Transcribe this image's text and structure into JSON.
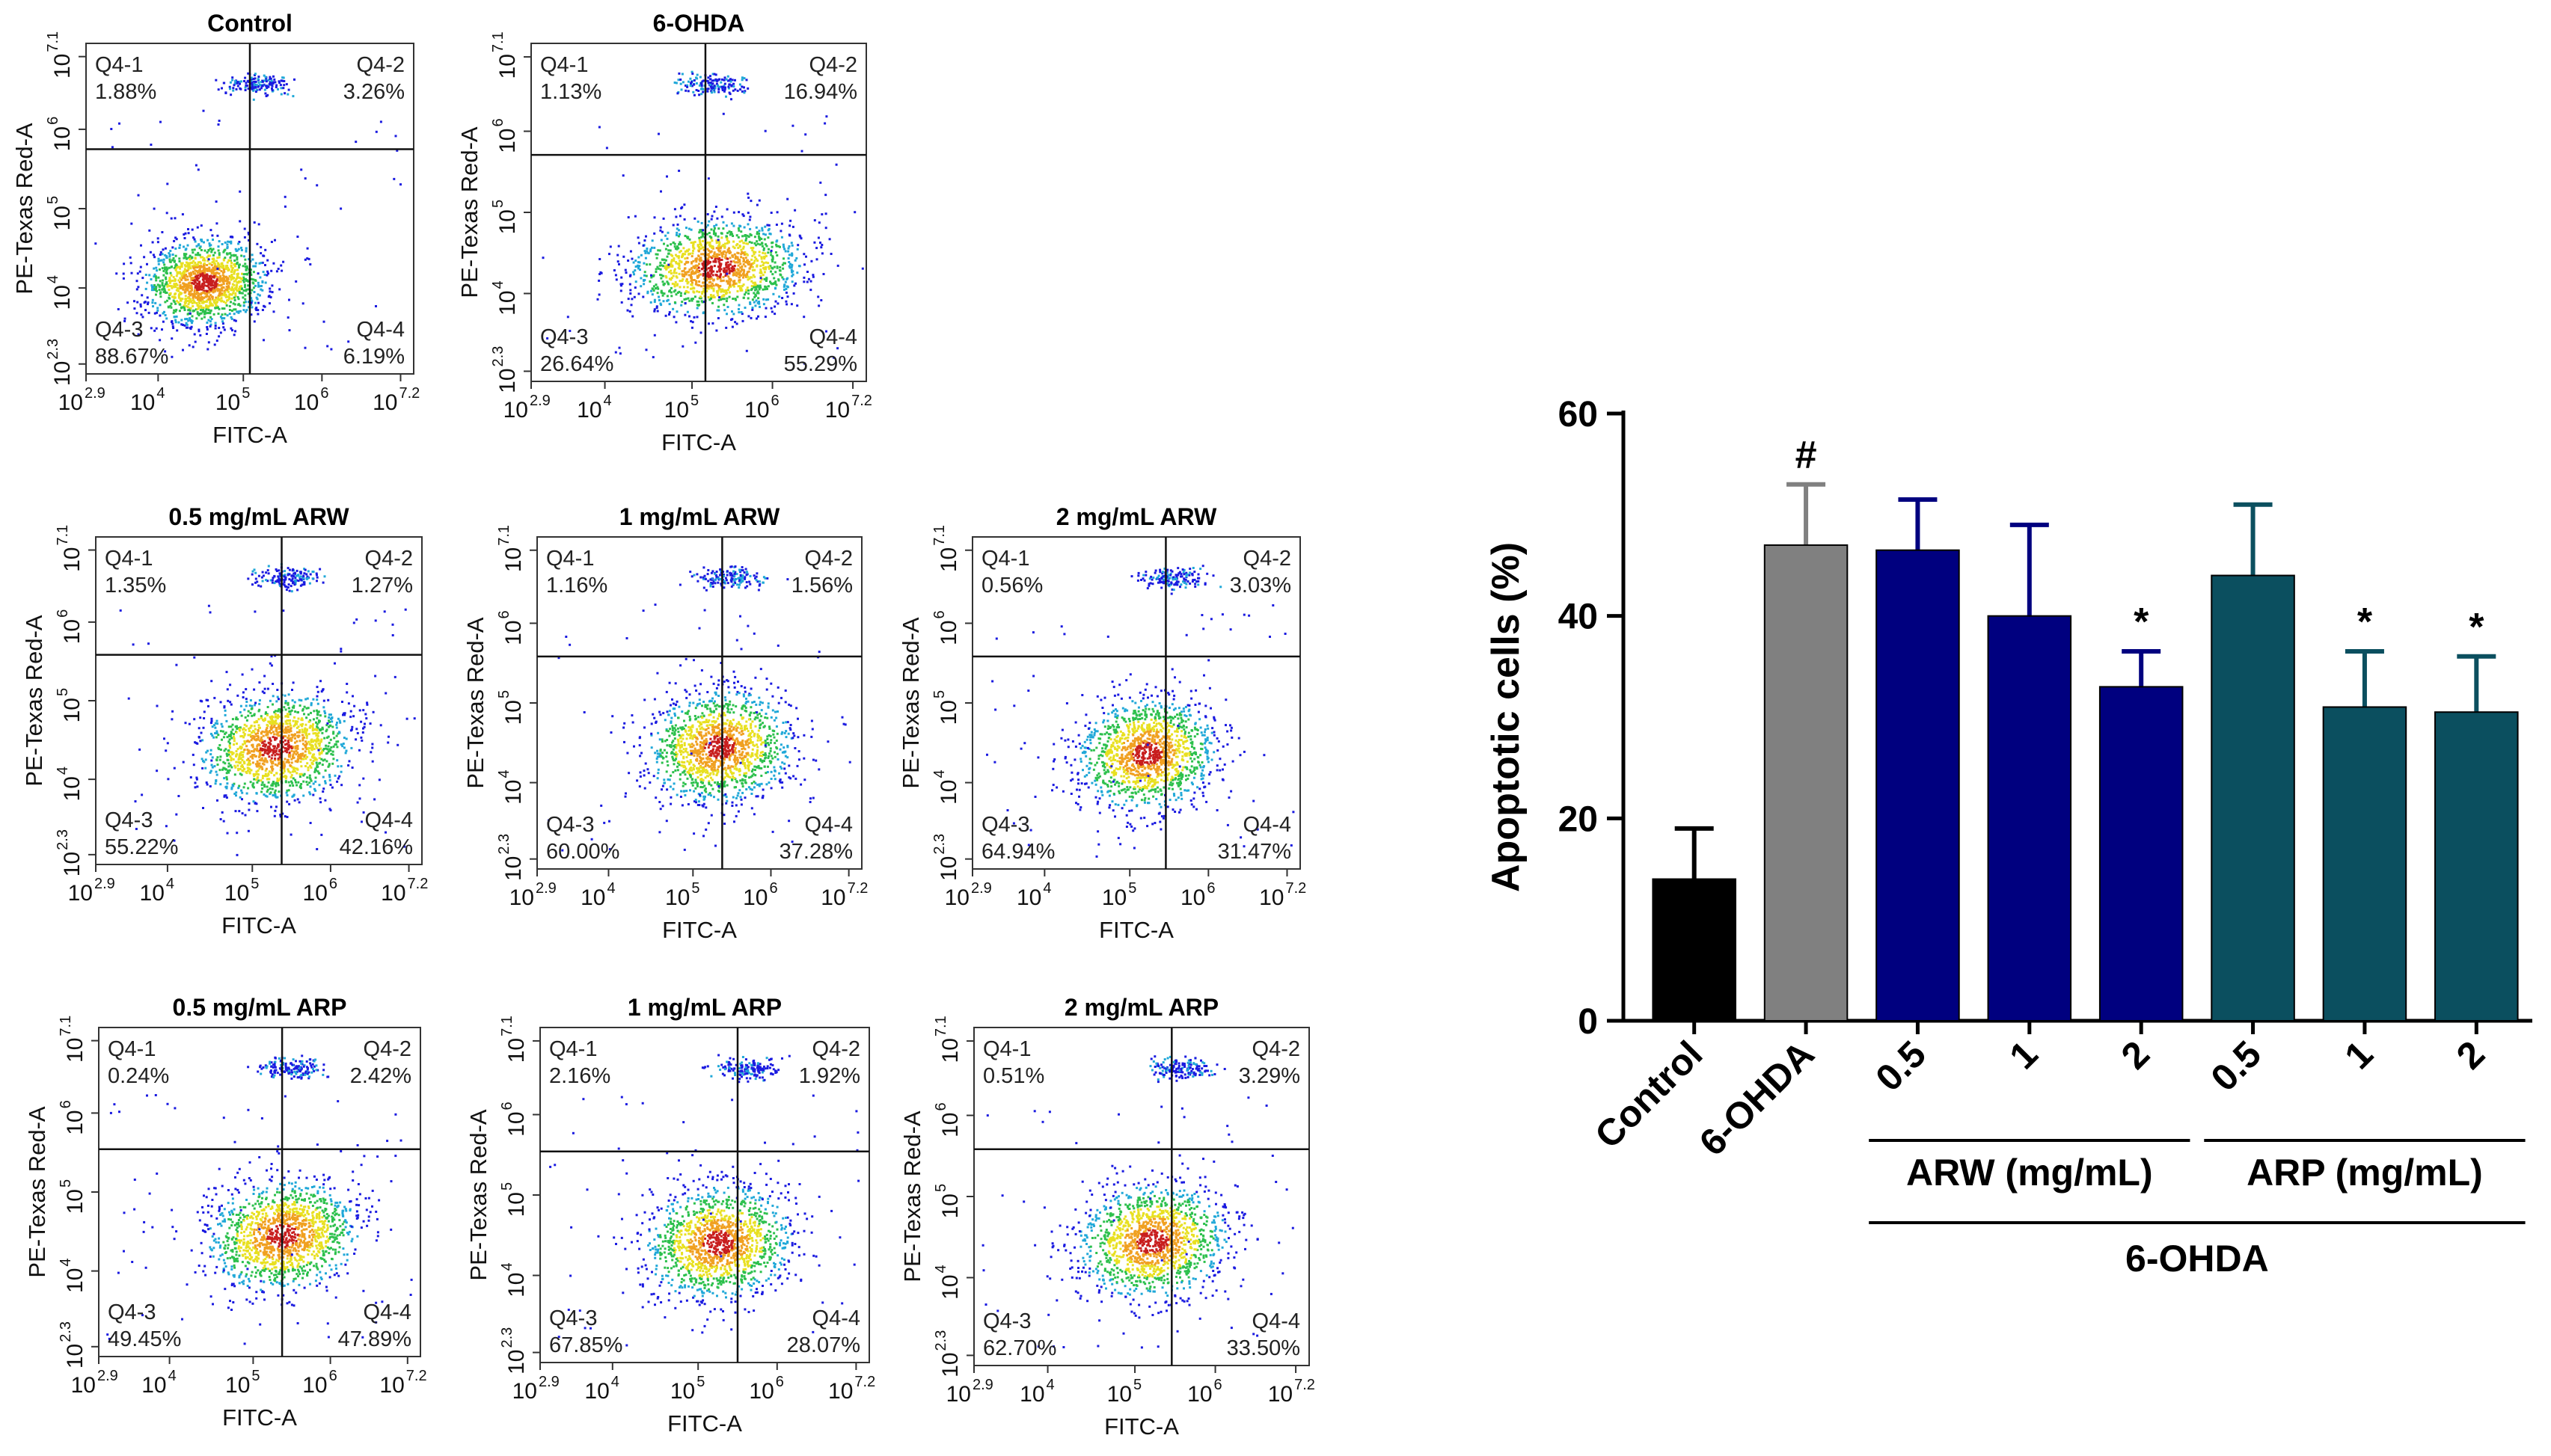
{
  "chart_data": [
    {
      "type": "scatter",
      "subtype": "flow-cytometry-dot-plot",
      "title": "Control",
      "xlabel": "FITC-A",
      "ylabel": "PE-Texas Red-A",
      "x_ticks": [
        "2.9",
        "4",
        "5",
        "6",
        "7.2"
      ],
      "y_ticks": [
        "2.3",
        "4",
        "5",
        "6",
        "7.1"
      ],
      "quadrants": [
        {
          "name": "Q4-1",
          "value": "1.88%"
        },
        {
          "name": "Q4-2",
          "value": "3.26%"
        },
        {
          "name": "Q4-3",
          "value": "88.67%"
        },
        {
          "name": "Q4-4",
          "value": "6.19%"
        }
      ],
      "cluster": {
        "cx": 0.36,
        "cy": 0.72,
        "rx": 0.16,
        "ry": 0.11
      },
      "gate": {
        "x": 0.5,
        "y": 0.32
      }
    },
    {
      "type": "scatter",
      "subtype": "flow-cytometry-dot-plot",
      "title": "6-OHDA",
      "xlabel": "FITC-A",
      "ylabel": "PE-Texas Red-A",
      "x_ticks": [
        "2.9",
        "4",
        "5",
        "6",
        "7.2"
      ],
      "y_ticks": [
        "2.3",
        "4",
        "5",
        "6",
        "7.1"
      ],
      "quadrants": [
        {
          "name": "Q4-1",
          "value": "1.13%"
        },
        {
          "name": "Q4-2",
          "value": "16.94%"
        },
        {
          "name": "Q4-3",
          "value": "26.64%"
        },
        {
          "name": "Q4-4",
          "value": "55.29%"
        }
      ],
      "cluster": {
        "cx": 0.55,
        "cy": 0.66,
        "rx": 0.22,
        "ry": 0.12
      },
      "gate": {
        "x": 0.52,
        "y": 0.33
      }
    },
    {
      "type": "scatter",
      "subtype": "flow-cytometry-dot-plot",
      "title": "0.5 mg/mL ARW",
      "xlabel": "FITC-A",
      "ylabel": "PE-Texas Red-A",
      "x_ticks": [
        "2.9",
        "4",
        "5",
        "6",
        "7.2"
      ],
      "y_ticks": [
        "2.3",
        "4",
        "5",
        "6",
        "7.1"
      ],
      "quadrants": [
        {
          "name": "Q4-1",
          "value": "1.35%"
        },
        {
          "name": "Q4-2",
          "value": "1.27%"
        },
        {
          "name": "Q4-3",
          "value": "55.22%"
        },
        {
          "name": "Q4-4",
          "value": "42.16%"
        }
      ],
      "cluster": {
        "cx": 0.55,
        "cy": 0.64,
        "rx": 0.2,
        "ry": 0.14
      },
      "gate": {
        "x": 0.57,
        "y": 0.36
      }
    },
    {
      "type": "scatter",
      "subtype": "flow-cytometry-dot-plot",
      "title": "1 mg/mL ARW",
      "xlabel": "FITC-A",
      "ylabel": "PE-Texas Red-A",
      "x_ticks": [
        "2.9",
        "4",
        "5",
        "6",
        "7.2"
      ],
      "y_ticks": [
        "2.3",
        "4",
        "5",
        "6",
        "7.1"
      ],
      "quadrants": [
        {
          "name": "Q4-1",
          "value": "1.16%"
        },
        {
          "name": "Q4-2",
          "value": "1.56%"
        },
        {
          "name": "Q4-3",
          "value": "60.00%"
        },
        {
          "name": "Q4-4",
          "value": "37.28%"
        }
      ],
      "cluster": {
        "cx": 0.56,
        "cy": 0.63,
        "rx": 0.19,
        "ry": 0.14
      },
      "gate": {
        "x": 0.57,
        "y": 0.36
      }
    },
    {
      "type": "scatter",
      "subtype": "flow-cytometry-dot-plot",
      "title": "2 mg/mL ARW",
      "xlabel": "FITC-A",
      "ylabel": "PE-Texas Red-A",
      "x_ticks": [
        "2.9",
        "4",
        "5",
        "6",
        "7.2"
      ],
      "y_ticks": [
        "2.3",
        "4",
        "5",
        "6",
        "7.1"
      ],
      "quadrants": [
        {
          "name": "Q4-1",
          "value": "0.56%"
        },
        {
          "name": "Q4-2",
          "value": "3.03%"
        },
        {
          "name": "Q4-3",
          "value": "64.94%"
        },
        {
          "name": "Q4-4",
          "value": "31.47%"
        }
      ],
      "cluster": {
        "cx": 0.53,
        "cy": 0.65,
        "rx": 0.18,
        "ry": 0.14
      },
      "gate": {
        "x": 0.59,
        "y": 0.36
      }
    },
    {
      "type": "scatter",
      "subtype": "flow-cytometry-dot-plot",
      "title": "0.5 mg/mL ARP",
      "xlabel": "FITC-A",
      "ylabel": "PE-Texas Red-A",
      "x_ticks": [
        "2.9",
        "4",
        "5",
        "6",
        "7.2"
      ],
      "y_ticks": [
        "2.3",
        "4",
        "5",
        "6",
        "7.1"
      ],
      "quadrants": [
        {
          "name": "Q4-1",
          "value": "0.24%"
        },
        {
          "name": "Q4-2",
          "value": "2.42%"
        },
        {
          "name": "Q4-3",
          "value": "49.45%"
        },
        {
          "name": "Q4-4",
          "value": "47.89%"
        }
      ],
      "cluster": {
        "cx": 0.57,
        "cy": 0.63,
        "rx": 0.2,
        "ry": 0.14
      },
      "gate": {
        "x": 0.57,
        "y": 0.37
      }
    },
    {
      "type": "scatter",
      "subtype": "flow-cytometry-dot-plot",
      "title": "1 mg/mL ARP",
      "xlabel": "FITC-A",
      "ylabel": "PE-Texas Red-A",
      "x_ticks": [
        "2.9",
        "4",
        "5",
        "6",
        "7.2"
      ],
      "y_ticks": [
        "2.3",
        "4",
        "5",
        "6",
        "7.1"
      ],
      "quadrants": [
        {
          "name": "Q4-1",
          "value": "2.16%"
        },
        {
          "name": "Q4-2",
          "value": "1.92%"
        },
        {
          "name": "Q4-3",
          "value": "67.85%"
        },
        {
          "name": "Q4-4",
          "value": "28.07%"
        }
      ],
      "cluster": {
        "cx": 0.54,
        "cy": 0.64,
        "rx": 0.19,
        "ry": 0.14
      },
      "gate": {
        "x": 0.6,
        "y": 0.37
      }
    },
    {
      "type": "scatter",
      "subtype": "flow-cytometry-dot-plot",
      "title": "2 mg/mL ARP",
      "xlabel": "FITC-A",
      "ylabel": "PE-Texas Red-A",
      "x_ticks": [
        "2.9",
        "4",
        "5",
        "6",
        "7.2"
      ],
      "y_ticks": [
        "2.3",
        "4",
        "5",
        "6",
        "7.1"
      ],
      "quadrants": [
        {
          "name": "Q4-1",
          "value": "0.51%"
        },
        {
          "name": "Q4-2",
          "value": "3.29%"
        },
        {
          "name": "Q4-3",
          "value": "62.70%"
        },
        {
          "name": "Q4-4",
          "value": "33.50%"
        }
      ],
      "cluster": {
        "cx": 0.53,
        "cy": 0.63,
        "rx": 0.19,
        "ry": 0.14
      },
      "gate": {
        "x": 0.59,
        "y": 0.36
      }
    },
    {
      "type": "bar",
      "title": "",
      "ylabel": "Apoptotic cells (%)",
      "ylim": [
        0,
        60
      ],
      "yticks": [
        0,
        20,
        40,
        60
      ],
      "categories": [
        "Control",
        "6-OHDA",
        "0.5",
        "1",
        "2",
        "0.5",
        "1",
        "2"
      ],
      "values": [
        14,
        47,
        46.5,
        40,
        33,
        44,
        31,
        30.5
      ],
      "errors": [
        5,
        6,
        5,
        9,
        3.5,
        7,
        5.5,
        5.5
      ],
      "significance": [
        "",
        "#",
        "",
        "",
        "*",
        "",
        "*",
        "*"
      ],
      "colors": [
        "#000000",
        "#808080",
        "#00007f",
        "#00007f",
        "#00007f",
        "#0b4f5f",
        "#0b4f5f",
        "#0b4f5f"
      ],
      "groups": [
        {
          "label": "ARW (mg/mL)",
          "from": 2,
          "to": 4
        },
        {
          "label": "ARP (mg/mL)",
          "from": 5,
          "to": 7
        },
        {
          "label": "6-OHDA",
          "from": 2,
          "to": 7
        }
      ]
    }
  ]
}
